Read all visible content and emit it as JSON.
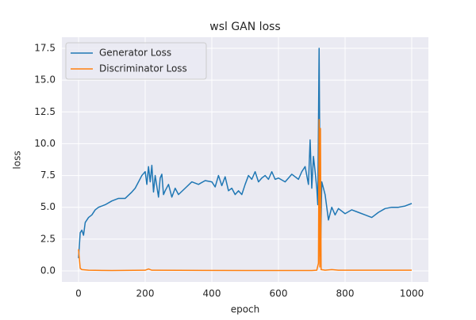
{
  "chart_data": {
    "type": "line",
    "title": "wsl GAN loss",
    "x_label": "epoch",
    "y_label": "loss",
    "xlim": [
      -50,
      1050
    ],
    "xticks": [
      0,
      200,
      400,
      600,
      800,
      1000
    ],
    "ylim": [
      -0.875,
      18.375
    ],
    "yticks": [
      {
        "value": 0,
        "label": "0.0"
      },
      2.5,
      {
        "value": 5,
        "label": "5.0"
      },
      7.5,
      {
        "value": 10,
        "label": "10.0"
      },
      12.5,
      {
        "value": 15,
        "label": "15.0"
      },
      17.5
    ],
    "grid": true,
    "legend": "upper left",
    "series": [
      {
        "name": "Generator Loss",
        "color": "#1f77b4",
        "x": [
          0,
          5,
          10,
          15,
          20,
          30,
          40,
          50,
          60,
          80,
          100,
          120,
          140,
          160,
          170,
          180,
          190,
          200,
          205,
          210,
          215,
          220,
          225,
          230,
          240,
          245,
          250,
          255,
          260,
          270,
          280,
          290,
          300,
          320,
          340,
          360,
          380,
          400,
          410,
          420,
          430,
          440,
          450,
          460,
          470,
          480,
          490,
          500,
          510,
          520,
          530,
          540,
          550,
          560,
          570,
          580,
          590,
          600,
          620,
          640,
          660,
          670,
          680,
          690,
          695,
          700,
          705,
          710,
          715,
          718,
          722,
          726,
          730,
          740,
          750,
          760,
          770,
          780,
          800,
          820,
          840,
          860,
          880,
          900,
          920,
          940,
          960,
          980,
          1000
        ],
        "values": [
          1.0,
          3.0,
          3.2,
          2.8,
          3.8,
          4.2,
          4.4,
          4.8,
          5.0,
          5.2,
          5.5,
          5.7,
          5.7,
          6.2,
          6.5,
          7.0,
          7.5,
          7.8,
          6.8,
          8.2,
          7.0,
          8.3,
          6.2,
          7.5,
          5.8,
          7.3,
          7.6,
          6.0,
          6.3,
          6.8,
          5.8,
          6.5,
          6.0,
          6.5,
          7.0,
          6.8,
          7.1,
          7.0,
          6.6,
          7.5,
          6.7,
          7.4,
          6.3,
          6.5,
          6.0,
          6.3,
          6.0,
          6.8,
          7.5,
          7.2,
          7.8,
          7.0,
          7.3,
          7.5,
          7.2,
          7.8,
          7.2,
          7.3,
          7.0,
          7.6,
          7.2,
          7.8,
          8.2,
          6.8,
          10.3,
          6.5,
          9.0,
          7.8,
          6.5,
          5.2,
          17.5,
          1.2,
          7.0,
          6.0,
          4.0,
          5.0,
          4.4,
          4.9,
          4.5,
          4.8,
          4.6,
          4.4,
          4.2,
          4.6,
          4.9,
          5.0,
          5.0,
          5.1,
          5.3
        ]
      },
      {
        "name": "Discriminator Loss",
        "color": "#ff7f0e",
        "x": [
          0,
          5,
          10,
          30,
          100,
          200,
          210,
          220,
          300,
          500,
          700,
          715,
          720,
          722,
          724,
          726,
          728,
          740,
          760,
          780,
          1000
        ],
        "values": [
          1.7,
          0.2,
          0.1,
          0.05,
          0.03,
          0.05,
          0.15,
          0.05,
          0.04,
          0.03,
          0.03,
          0.05,
          0.6,
          11.9,
          0.3,
          11.2,
          0.1,
          0.05,
          0.1,
          0.05,
          0.05
        ]
      }
    ]
  }
}
